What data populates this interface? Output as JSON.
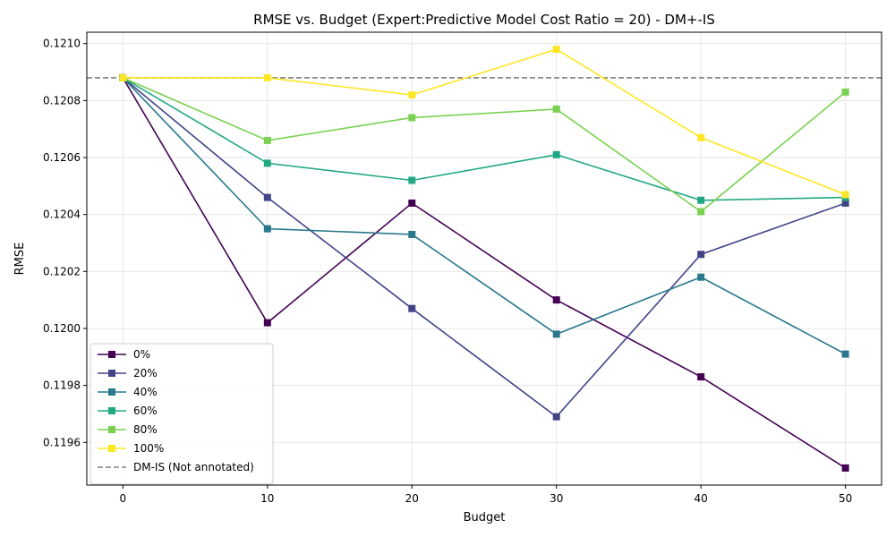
{
  "chart_data": {
    "type": "line",
    "title": "RMSE vs. Budget (Expert:Predictive Model Cost Ratio = 20) - DM+-IS",
    "xlabel": "Budget",
    "ylabel": "RMSE",
    "x": [
      0,
      10,
      20,
      30,
      40,
      50
    ],
    "xlim": [
      -2.5,
      52.5
    ],
    "ylim": [
      0.11945,
      0.12104
    ],
    "xticks": [
      0,
      10,
      20,
      30,
      40,
      50
    ],
    "yticks": [
      0.1196,
      0.1198,
      0.12,
      0.1202,
      0.1204,
      0.1206,
      0.1208,
      0.121
    ],
    "ytick_labels": [
      "0.1196",
      "0.1198",
      "0.1200",
      "0.1202",
      "0.1204",
      "0.1206",
      "0.1208",
      "0.1210"
    ],
    "grid": true,
    "legend_position": "lower-left",
    "series": [
      {
        "name": "0%",
        "color": "#440154",
        "values": [
          0.12088,
          0.12002,
          0.12044,
          0.1201,
          0.11983,
          0.11951
        ]
      },
      {
        "name": "20%",
        "color": "#414487",
        "values": [
          0.12088,
          0.12046,
          0.12007,
          0.11969,
          0.12026,
          0.12044
        ]
      },
      {
        "name": "40%",
        "color": "#2a788e",
        "values": [
          0.12088,
          0.12035,
          0.12033,
          0.11998,
          0.12018,
          0.11991
        ]
      },
      {
        "name": "60%",
        "color": "#22a884",
        "values": [
          0.12088,
          0.12058,
          0.12052,
          0.12061,
          0.12045,
          0.12046
        ]
      },
      {
        "name": "80%",
        "color": "#7ad151",
        "values": [
          0.12088,
          0.12066,
          0.12074,
          0.12077,
          0.12041,
          0.12083
        ]
      },
      {
        "name": "100%",
        "color": "#fde725",
        "values": [
          0.12088,
          0.12088,
          0.12082,
          0.12098,
          0.12067,
          0.12047
        ]
      }
    ],
    "reference_line": {
      "name": "DM-IS (Not annotated)",
      "color": "#808080",
      "value": 0.12088
    }
  }
}
